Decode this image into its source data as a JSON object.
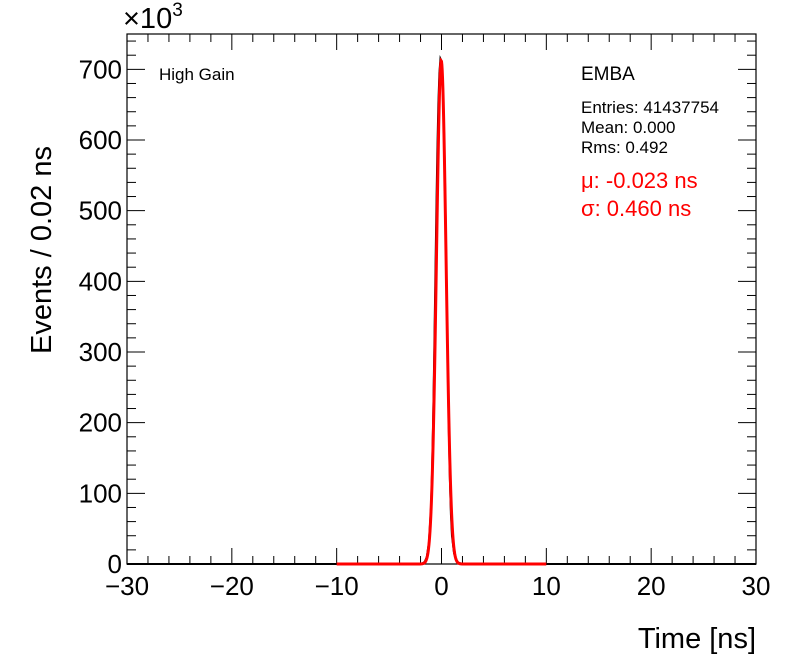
{
  "chart_data": {
    "type": "line",
    "xlabel": "Time [ns]",
    "ylabel": "Events / 0.02 ns",
    "y_multiplier": "×10",
    "y_multiplier_exp": "3",
    "xlim": [
      -30,
      30
    ],
    "ylim": [
      0,
      750
    ],
    "x_ticks": [
      -30,
      -20,
      -10,
      0,
      10,
      20,
      30
    ],
    "x_tick_labels": [
      "−30",
      "−20",
      "−10",
      "0",
      "10",
      "20",
      "30"
    ],
    "y_ticks": [
      0,
      100,
      200,
      300,
      400,
      500,
      600,
      700
    ],
    "y_tick_labels": [
      "0",
      "100",
      "200",
      "300",
      "400",
      "500",
      "600",
      "700"
    ],
    "grid": false,
    "series": [
      {
        "kind": "histogram",
        "color": "#000000",
        "x": [
          -2.0,
          -1.8,
          -1.6,
          -1.4,
          -1.2,
          -1.0,
          -0.9,
          -0.8,
          -0.7,
          -0.6,
          -0.5,
          -0.4,
          -0.3,
          -0.2,
          -0.1,
          0.0,
          0.1,
          0.2,
          0.3,
          0.4,
          0.5,
          0.6,
          0.7,
          0.8,
          0.9,
          1.0,
          1.2,
          1.4,
          1.6,
          1.8,
          2.0
        ],
        "y": [
          0,
          1,
          3,
          10,
          30,
          80,
          130,
          200,
          290,
          390,
          490,
          580,
          650,
          695,
          715,
          712,
          690,
          640,
          570,
          480,
          380,
          280,
          190,
          120,
          70,
          40,
          15,
          6,
          2,
          1,
          0
        ]
      },
      {
        "kind": "gaussian-fit",
        "color": "#ff0000",
        "mu": -0.023,
        "sigma": 0.46,
        "amplitude": 712,
        "range": [
          -10,
          10
        ]
      }
    ],
    "annotations": {
      "gain": "High Gain",
      "partition": "EMBA",
      "entries": "Entries: 41437754",
      "mean": "Mean: 0.000",
      "rms": "Rms: 0.492",
      "fit_mu": "μ: -0.023 ns",
      "fit_sigma": "σ: 0.460 ns"
    }
  },
  "colors": {
    "fit": "#ff0000",
    "hist": "#000000",
    "frame": "#000000"
  }
}
